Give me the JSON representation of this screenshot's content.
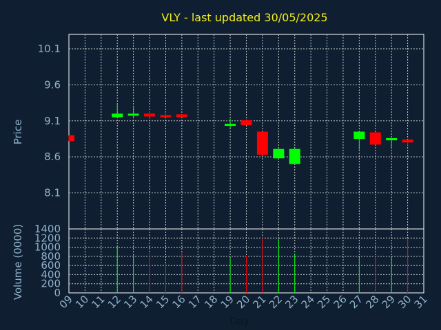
{
  "chart_data": {
    "type": "candlestick",
    "title": "VLY - last updated 30/05/2025",
    "price_panel": {
      "ylabel": "Price",
      "ylim": [
        7.6,
        10.3
      ],
      "yticks": [
        10.1,
        9.6,
        9.1,
        8.6,
        8.1
      ]
    },
    "volume_panel": {
      "ylabel": "Volume (0000)",
      "ylim": [
        0,
        1400
      ],
      "yticks": [
        0,
        200,
        400,
        600,
        800,
        1000,
        1200,
        1400
      ]
    },
    "xlabel": "Day",
    "xlim": [
      9,
      31
    ],
    "xticks": [
      "09",
      "10",
      "11",
      "12",
      "13",
      "14",
      "15",
      "16",
      "17",
      "18",
      "19",
      "20",
      "21",
      "22",
      "23",
      "24",
      "25",
      "26",
      "27",
      "28",
      "29",
      "30",
      "31"
    ],
    "up_color": "#00ff00",
    "down_color": "#ff0000",
    "candles": [
      {
        "day": 9,
        "open": 8.9,
        "high": 8.9,
        "low": 8.82,
        "close": 8.82,
        "volume": 0
      },
      {
        "day": 12,
        "open": 9.15,
        "high": 9.33,
        "low": 9.15,
        "close": 9.2,
        "volume": 1020
      },
      {
        "day": 13,
        "open": 9.18,
        "high": 9.31,
        "low": 9.15,
        "close": 9.2,
        "volume": 840
      },
      {
        "day": 14,
        "open": 9.2,
        "high": 9.23,
        "low": 9.15,
        "close": 9.16,
        "volume": 870
      },
      {
        "day": 15,
        "open": 9.18,
        "high": 9.22,
        "low": 9.15,
        "close": 9.15,
        "volume": 640
      },
      {
        "day": 16,
        "open": 9.19,
        "high": 9.19,
        "low": 9.15,
        "close": 9.15,
        "volume": 880
      },
      {
        "day": 19,
        "open": 9.03,
        "high": 9.13,
        "low": 9.0,
        "close": 9.06,
        "volume": 760
      },
      {
        "day": 20,
        "open": 9.11,
        "high": 9.11,
        "low": 9.04,
        "close": 9.04,
        "volume": 810
      },
      {
        "day": 21,
        "open": 8.95,
        "high": 8.95,
        "low": 8.63,
        "close": 8.63,
        "volume": 1220
      },
      {
        "day": 22,
        "open": 8.58,
        "high": 8.71,
        "low": 8.58,
        "close": 8.71,
        "volume": 1180
      },
      {
        "day": 23,
        "open": 8.5,
        "high": 8.72,
        "low": 8.5,
        "close": 8.71,
        "volume": 860
      },
      {
        "day": 27,
        "open": 8.85,
        "high": 8.96,
        "low": 8.7,
        "close": 8.95,
        "volume": 770
      },
      {
        "day": 28,
        "open": 8.94,
        "high": 8.94,
        "low": 8.77,
        "close": 8.77,
        "volume": 800
      },
      {
        "day": 29,
        "open": 8.83,
        "high": 8.86,
        "low": 8.71,
        "close": 8.86,
        "volume": 790
      },
      {
        "day": 30,
        "open": 8.84,
        "high": 8.84,
        "low": 8.76,
        "close": 8.8,
        "volume": 1200
      }
    ]
  }
}
